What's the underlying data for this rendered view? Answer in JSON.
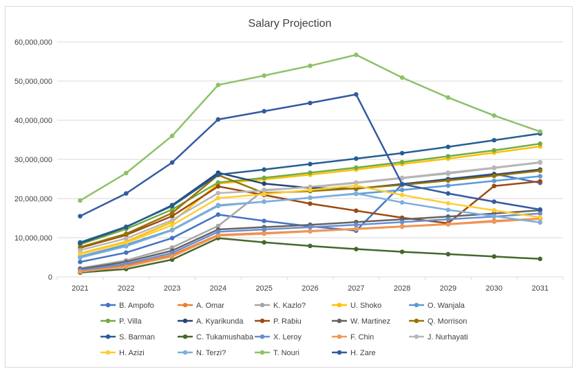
{
  "chart_data": {
    "type": "line",
    "title": "Salary Projection",
    "xlabel": "",
    "ylabel": "",
    "x": [
      "2021",
      "2022",
      "2023",
      "2024",
      "2025",
      "2026",
      "2027",
      "2028",
      "2029",
      "2030",
      "2031"
    ],
    "ylim": [
      0,
      60000000
    ],
    "yticks": [
      0,
      10000000,
      20000000,
      30000000,
      40000000,
      50000000,
      60000000
    ],
    "ytick_labels": [
      "0",
      "10,000,000",
      "20,000,000",
      "30,000,000",
      "40,000,000",
      "50,000,000",
      "60,000,000"
    ],
    "grid": true,
    "legend_position": "bottom",
    "series": [
      {
        "name": "B. Ampofo",
        "color": "#4472C4",
        "values": [
          3800000,
          6200000,
          9900000,
          15900000,
          14300000,
          12900000,
          11800000,
          23600000,
          25000000,
          26300000,
          24000000
        ]
      },
      {
        "name": "A. Omar",
        "color": "#ED7D31",
        "values": [
          1500000,
          2900000,
          5600000,
          10700000,
          11200000,
          11700000,
          12300000,
          12900000,
          13500000,
          14300000,
          14900000
        ]
      },
      {
        "name": "K. Kazlo?",
        "color": "#A5A5A5",
        "values": [
          2200000,
          4200000,
          7500000,
          13000000,
          22200000,
          22900000,
          24000000,
          25200000,
          26400000,
          27800000,
          29200000
        ]
      },
      {
        "name": "U. Shoko",
        "color": "#FFC000",
        "values": [
          6000000,
          9000000,
          14000000,
          23800000,
          24900000,
          26100000,
          27400000,
          28800000,
          30200000,
          31700000,
          33300000
        ]
      },
      {
        "name": "O. Wanjala",
        "color": "#5B9BD5",
        "values": [
          5200000,
          8200000,
          12000000,
          18300000,
          19200000,
          20200000,
          21200000,
          22200000,
          23300000,
          24500000,
          25700000
        ]
      },
      {
        "name": "P. Villa",
        "color": "#70AD47",
        "values": [
          8300000,
          12200000,
          17200000,
          24100000,
          25300000,
          26600000,
          27900000,
          29300000,
          30800000,
          32300000,
          34000000
        ]
      },
      {
        "name": "A. Kyarikunda",
        "color": "#264478",
        "values": [
          8600000,
          12700000,
          18300000,
          26600000,
          23800000,
          22700000,
          22500000,
          23700000,
          24900000,
          26100000,
          27400000
        ]
      },
      {
        "name": "P. Rabiu",
        "color": "#9E480E",
        "values": [
          7400000,
          10700000,
          15500000,
          23100000,
          20900000,
          18700000,
          16900000,
          15100000,
          13700000,
          23200000,
          24400000
        ]
      },
      {
        "name": "W. Martinez",
        "color": "#636363",
        "values": [
          2000000,
          3800000,
          6700000,
          12100000,
          12700000,
          13300000,
          14000000,
          14700000,
          15400000,
          16200000,
          17000000
        ]
      },
      {
        "name": "Q. Morrison",
        "color": "#997300",
        "values": [
          7600000,
          11000000,
          16300000,
          26000000,
          21400000,
          21900000,
          22600000,
          23500000,
          24600000,
          25800000,
          27100000
        ]
      },
      {
        "name": "S. Barman",
        "color": "#255E91",
        "values": [
          8800000,
          12800000,
          18100000,
          26100000,
          27400000,
          28800000,
          30200000,
          31600000,
          33200000,
          34900000,
          36600000
        ]
      },
      {
        "name": "C. Tukamushaba",
        "color": "#43682B",
        "values": [
          1100000,
          2000000,
          4400000,
          9900000,
          8800000,
          7900000,
          7100000,
          6400000,
          5800000,
          5200000,
          4600000
        ]
      },
      {
        "name": "X. Leroy",
        "color": "#698ED0",
        "values": [
          1700000,
          3300000,
          6100000,
          11500000,
          12100000,
          12700000,
          13300000,
          14000000,
          14700000,
          15400000,
          16200000
        ]
      },
      {
        "name": "F. Chin",
        "color": "#F1975A",
        "values": [
          1300000,
          2600000,
          5200000,
          10500000,
          11000000,
          11600000,
          12200000,
          12800000,
          13400000,
          14100000,
          14800000
        ]
      },
      {
        "name": "J. Nurhayati",
        "color": "#B7B7B7",
        "values": [
          6800000,
          9800000,
          14500000,
          21400000,
          22000000,
          23000000,
          24100000,
          25300000,
          26600000,
          27900000,
          29300000
        ]
      },
      {
        "name": "H. Azizi",
        "color": "#FFCD33",
        "values": [
          5800000,
          8700000,
          13200000,
          20100000,
          21100000,
          22200000,
          23300000,
          20900000,
          18800000,
          17000000,
          15200000
        ]
      },
      {
        "name": "N. Terzi?",
        "color": "#7CAFDD",
        "values": [
          4900000,
          7800000,
          11900000,
          18100000,
          19200000,
          20200000,
          21300000,
          19000000,
          17100000,
          15500000,
          13900000
        ]
      },
      {
        "name": "T. Nouri",
        "color": "#8CC168",
        "values": [
          19500000,
          26500000,
          36000000,
          49000000,
          51400000,
          53900000,
          56700000,
          50900000,
          45800000,
          41200000,
          37100000
        ]
      },
      {
        "name": "H. Zare",
        "color": "#335AA1",
        "values": [
          15500000,
          21300000,
          29200000,
          40200000,
          42300000,
          44400000,
          46600000,
          23700000,
          21300000,
          19200000,
          17200000
        ]
      }
    ]
  }
}
